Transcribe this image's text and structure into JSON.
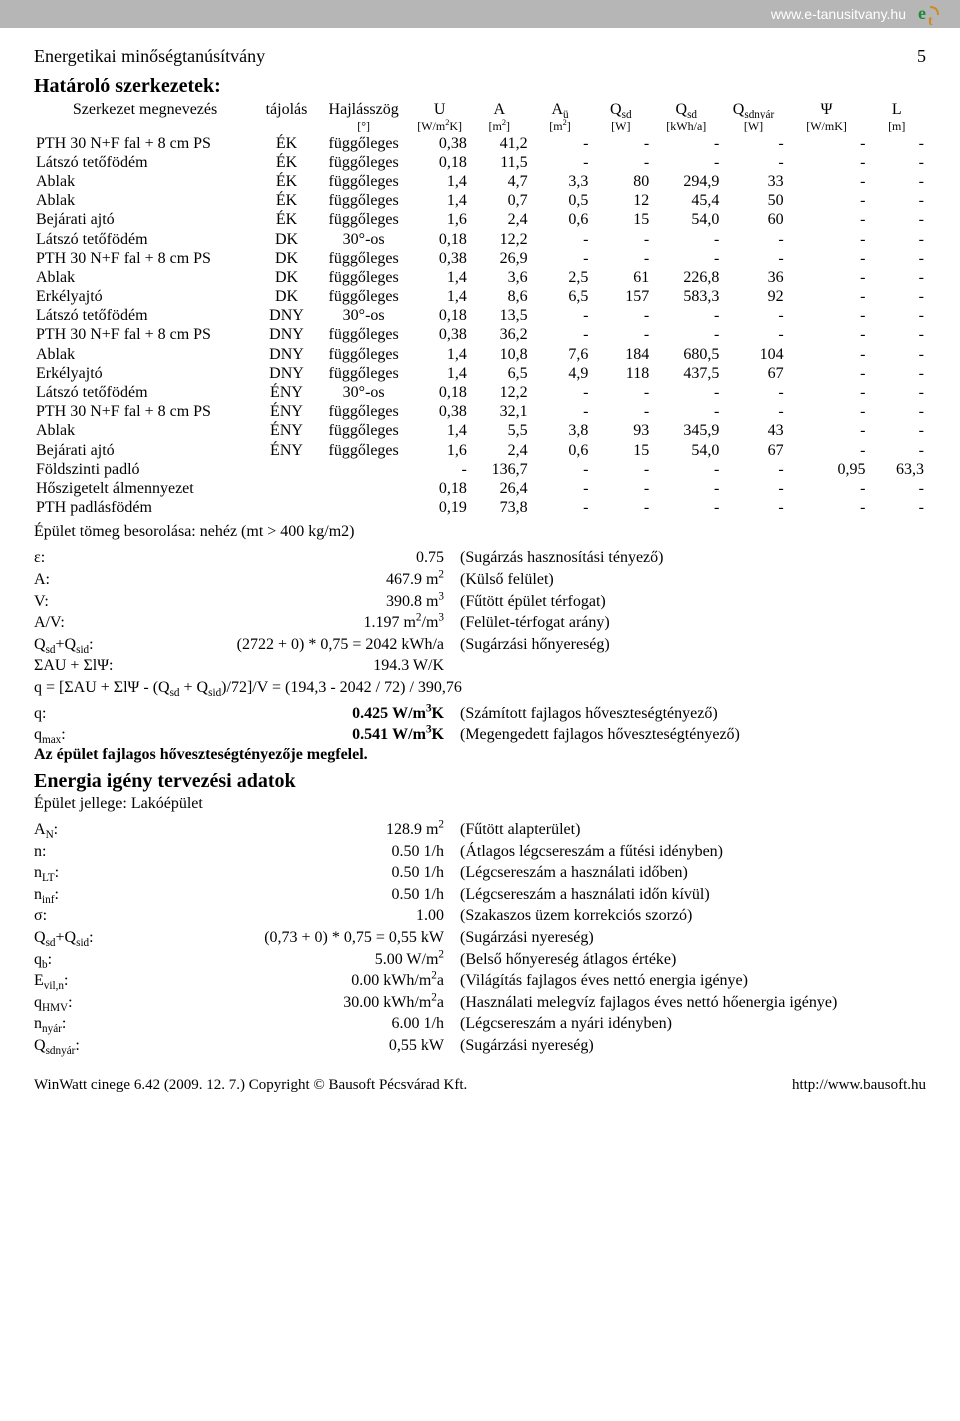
{
  "topbar": {
    "link_text": "www.e-tanusitvany.hu",
    "link_color": "#ffffff",
    "bg": "#b6b6b7",
    "logo_e_color": "#1e8a36",
    "logo_t_color": "#d08a1f"
  },
  "doc_title": "Energetikai minőségtanúsítvány",
  "page_number": "5",
  "section1": {
    "title": "Határoló szerkezetek:",
    "headers": [
      "Szerkezet megnevezés",
      "tájolás",
      "Hajlásszög",
      "U",
      "A",
      "Aü",
      "Qsd",
      "Qsd",
      "Qsdnyár",
      "Ψ",
      "L"
    ],
    "units": [
      "",
      "",
      "[°]",
      "[W/m²K]",
      "[m²]",
      "[m²]",
      "[W]",
      "[kWh/a]",
      "[W]",
      "[W/mK]",
      "[m]"
    ],
    "rows": [
      [
        "PTH 30 N+F fal + 8 cm PS",
        "ÉK",
        "függőleges",
        "0,38",
        "41,2",
        "-",
        "-",
        "-",
        "-",
        "-",
        "-"
      ],
      [
        "Látszó tetőfödém",
        "ÉK",
        "függőleges",
        "0,18",
        "11,5",
        "-",
        "-",
        "-",
        "-",
        "-",
        "-"
      ],
      [
        "Ablak",
        "ÉK",
        "függőleges",
        "1,4",
        "4,7",
        "3,3",
        "80",
        "294,9",
        "33",
        "-",
        "-"
      ],
      [
        "Ablak",
        "ÉK",
        "függőleges",
        "1,4",
        "0,7",
        "0,5",
        "12",
        "45,4",
        "50",
        "-",
        "-"
      ],
      [
        "Bejárati ajtó",
        "ÉK",
        "függőleges",
        "1,6",
        "2,4",
        "0,6",
        "15",
        "54,0",
        "60",
        "-",
        "-"
      ],
      [
        "Látszó tetőfödém",
        "DK",
        "30°-os",
        "0,18",
        "12,2",
        "-",
        "-",
        "-",
        "-",
        "-",
        "-"
      ],
      [
        "PTH 30 N+F fal + 8 cm PS",
        "DK",
        "függőleges",
        "0,38",
        "26,9",
        "-",
        "-",
        "-",
        "-",
        "-",
        "-"
      ],
      [
        "Ablak",
        "DK",
        "függőleges",
        "1,4",
        "3,6",
        "2,5",
        "61",
        "226,8",
        "36",
        "-",
        "-"
      ],
      [
        "Erkélyajtó",
        "DK",
        "függőleges",
        "1,4",
        "8,6",
        "6,5",
        "157",
        "583,3",
        "92",
        "-",
        "-"
      ],
      [
        "Látszó tetőfödém",
        "DNY",
        "30°-os",
        "0,18",
        "13,5",
        "-",
        "-",
        "-",
        "-",
        "-",
        "-"
      ],
      [
        "PTH 30 N+F fal + 8 cm PS",
        "DNY",
        "függőleges",
        "0,38",
        "36,2",
        "-",
        "-",
        "-",
        "-",
        "-",
        "-"
      ],
      [
        "Ablak",
        "DNY",
        "függőleges",
        "1,4",
        "10,8",
        "7,6",
        "184",
        "680,5",
        "104",
        "-",
        "-"
      ],
      [
        "Erkélyajtó",
        "DNY",
        "függőleges",
        "1,4",
        "6,5",
        "4,9",
        "118",
        "437,5",
        "67",
        "-",
        "-"
      ],
      [
        "Látszó tetőfödém",
        "ÉNY",
        "30°-os",
        "0,18",
        "12,2",
        "-",
        "-",
        "-",
        "-",
        "-",
        "-"
      ],
      [
        "PTH 30 N+F fal + 8 cm PS",
        "ÉNY",
        "függőleges",
        "0,38",
        "32,1",
        "-",
        "-",
        "-",
        "-",
        "-",
        "-"
      ],
      [
        "Ablak",
        "ÉNY",
        "függőleges",
        "1,4",
        "5,5",
        "3,8",
        "93",
        "345,9",
        "43",
        "-",
        "-"
      ],
      [
        "Bejárati ajtó",
        "ÉNY",
        "függőleges",
        "1,6",
        "2,4",
        "0,6",
        "15",
        "54,0",
        "67",
        "-",
        "-"
      ],
      [
        "Földszinti padló",
        "",
        "",
        "-",
        "136,7",
        "-",
        "-",
        "-",
        "-",
        "0,95",
        "63,3"
      ],
      [
        "Hőszigetelt álmennyezet",
        "",
        "",
        "0,18",
        "26,4",
        "-",
        "-",
        "-",
        "-",
        "-",
        "-"
      ],
      [
        "PTH padlásfödém",
        "",
        "",
        "0,19",
        "73,8",
        "-",
        "-",
        "-",
        "-",
        "-",
        "-"
      ]
    ]
  },
  "mass_class": "Épület tömeg besorolása: nehéz (mt > 400 kg/m2)",
  "calc": [
    {
      "lab": "ε:",
      "val": "0.75",
      "desc": "(Sugárzás hasznosítási tényező)"
    },
    {
      "lab": "A:",
      "val": "467.9 m²",
      "desc": "(Külső felület)"
    },
    {
      "lab": "V:",
      "val": "390.8 m³",
      "desc": "(Fűtött épület térfogat)"
    },
    {
      "lab": "A/V:",
      "val": "1.197 m²/m³",
      "desc": "(Felület-térfogat arány)"
    },
    {
      "lab": "Qsd+Qsid:",
      "val": "(2722 + 0) * 0,75 = 2042 kWh/a",
      "desc": "(Sugárzási hőnyereség)"
    },
    {
      "lab": "ΣAU + ΣlΨ:",
      "val": "194.3 W/K",
      "desc": ""
    }
  ],
  "q_formula": "q = [ΣAU + ΣlΨ - (Qsd + Qsid)/72]/V = (194,3 - 2042 / 72) / 390,76",
  "q_rows": [
    {
      "lab": "q:",
      "val": "0.425 W/m³K",
      "desc": "(Számított fajlagos hőveszteségtényező)"
    },
    {
      "lab": "qmax:",
      "val": "0.541 W/m³K",
      "desc": "(Megengedett fajlagos hőveszteségtényező)"
    }
  ],
  "q_conclusion": "Az épület fajlagos hőveszteségtényezője megfelel.",
  "section2": {
    "title": "Energia igény tervezési adatok",
    "subtitle": "Épület jellege: Lakóépület",
    "rows": [
      {
        "lab": "AN:",
        "val": "128.9 m²",
        "desc": "(Fűtött alapterület)"
      },
      {
        "lab": "n:",
        "val": "0.50 1/h",
        "desc": "(Átlagos légcsereszám a fűtési idényben)"
      },
      {
        "lab": "nLT:",
        "val": "0.50 1/h",
        "desc": "(Légcsereszám a használati időben)"
      },
      {
        "lab": "ninf:",
        "val": "0.50 1/h",
        "desc": "(Légcsereszám a használati időn kívül)"
      },
      {
        "lab": "σ:",
        "val": "1.00",
        "desc": "(Szakaszos üzem korrekciós szorzó)"
      },
      {
        "lab": "Qsd+Qsid:",
        "val": "(0,73 + 0) * 0,75 = 0,55 kW",
        "desc": "(Sugárzási nyereség)"
      },
      {
        "lab": "qb:",
        "val": "5.00 W/m²",
        "desc": "(Belső hőnyereség átlagos értéke)"
      },
      {
        "lab": "Evil,n:",
        "val": "0.00 kWh/m²a",
        "desc": "(Világítás fajlagos éves nettó energia igénye)"
      },
      {
        "lab": "qHMV:",
        "val": "30.00 kWh/m²a",
        "desc": "(Használati melegvíz fajlagos éves nettó hőenergia igénye)"
      },
      {
        "lab": "nnyár:",
        "val": "6.00 1/h",
        "desc": "(Légcsereszám a nyári idényben)"
      },
      {
        "lab": "Qsdnyár:",
        "val": "0,55 kW",
        "desc": "(Sugárzási nyereség)"
      }
    ]
  },
  "footer": {
    "left": "WinWatt cinege 6.42 (2009. 12. 7.) Copyright © Bausoft Pécsvárad Kft.",
    "right": "http://www.bausoft.hu"
  }
}
